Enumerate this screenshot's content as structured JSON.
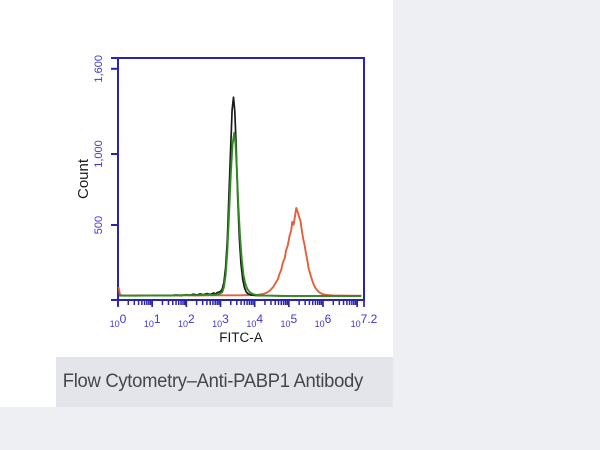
{
  "page": {
    "background_color": "#ffffff",
    "margin_color": "#edeff3"
  },
  "figure": {
    "background_color": "#ffffff"
  },
  "caption": {
    "text": "Flow Cytometry–Anti-PABP1 Antibody",
    "background_color": "#e4e5ea",
    "text_color": "#46464a"
  },
  "chart_data": {
    "type": "line",
    "subtype": "flow-cytometry-histogram",
    "title": "",
    "xlabel": "FITC-A",
    "ylabel": "Count",
    "x_scale": "log10",
    "x_range_exponents": [
      0,
      7.2
    ],
    "x_tick_labels": [
      {
        "base": "10",
        "exp": "0",
        "pos": 0
      },
      {
        "base": "10",
        "exp": "1",
        "pos": 1
      },
      {
        "base": "10",
        "exp": "2",
        "pos": 2
      },
      {
        "base": "10",
        "exp": "3",
        "pos": 3
      },
      {
        "base": "10",
        "exp": "4",
        "pos": 4
      },
      {
        "base": "10",
        "exp": "5",
        "pos": 5
      },
      {
        "base": "10",
        "exp": "6",
        "pos": 6
      },
      {
        "base": "10",
        "exp": "7.2",
        "pos": 7.2
      }
    ],
    "y_ticks": [
      {
        "value": 500,
        "label": "500"
      },
      {
        "value": 1000,
        "label": "1,000"
      },
      {
        "value": 1600,
        "label": "1,600"
      }
    ],
    "ylim": [
      0,
      1676
    ],
    "grid": false,
    "legend": "none",
    "axis_color": "#2b22ae",
    "tick_label_color": "#4238c8",
    "axis_title_color": "#1a1a1a",
    "series": [
      {
        "name": "orange",
        "color": "#e2603c",
        "stroke_width": 1.9,
        "peak": {
          "log_x": 5.22,
          "count": 620
        },
        "points": [
          [
            0.02,
            58
          ],
          [
            0.06,
            8
          ],
          [
            0.12,
            4
          ],
          [
            0.4,
            3
          ],
          [
            0.8,
            4
          ],
          [
            1.2,
            3
          ],
          [
            1.6,
            4
          ],
          [
            2.0,
            5
          ],
          [
            2.4,
            4
          ],
          [
            2.8,
            5
          ],
          [
            3.2,
            5
          ],
          [
            3.6,
            5
          ],
          [
            3.9,
            7
          ],
          [
            4.1,
            9
          ],
          [
            4.25,
            14
          ],
          [
            4.35,
            23
          ],
          [
            4.45,
            39
          ],
          [
            4.55,
            66
          ],
          [
            4.62,
            96
          ],
          [
            4.68,
            118
          ],
          [
            4.72,
            152
          ],
          [
            4.78,
            186
          ],
          [
            4.82,
            232
          ],
          [
            4.88,
            266
          ],
          [
            4.92,
            322
          ],
          [
            4.97,
            356
          ],
          [
            5.02,
            422
          ],
          [
            5.07,
            462
          ],
          [
            5.1,
            521
          ],
          [
            5.14,
            502
          ],
          [
            5.18,
            562
          ],
          [
            5.22,
            620
          ],
          [
            5.26,
            592
          ],
          [
            5.3,
            556
          ],
          [
            5.34,
            532
          ],
          [
            5.38,
            462
          ],
          [
            5.42,
            402
          ],
          [
            5.46,
            362
          ],
          [
            5.5,
            302
          ],
          [
            5.54,
            252
          ],
          [
            5.58,
            196
          ],
          [
            5.63,
            151
          ],
          [
            5.68,
            112
          ],
          [
            5.73,
            79
          ],
          [
            5.78,
            56
          ],
          [
            5.84,
            38
          ],
          [
            5.9,
            24
          ],
          [
            5.98,
            14
          ],
          [
            6.06,
            9
          ],
          [
            6.15,
            6
          ],
          [
            6.3,
            4
          ],
          [
            6.5,
            3
          ],
          [
            6.8,
            2
          ],
          [
            7.1,
            2
          ]
        ]
      },
      {
        "name": "black",
        "color": "#1b1b1b",
        "stroke_width": 1.7,
        "peak": {
          "log_x": 3.38,
          "count": 1400
        },
        "points": [
          [
            0.05,
            3
          ],
          [
            0.3,
            2
          ],
          [
            0.6,
            3
          ],
          [
            0.9,
            2
          ],
          [
            1.2,
            4
          ],
          [
            1.5,
            3
          ],
          [
            1.7,
            7
          ],
          [
            1.85,
            3
          ],
          [
            2.0,
            9
          ],
          [
            2.1,
            5
          ],
          [
            2.2,
            13
          ],
          [
            2.3,
            7
          ],
          [
            2.4,
            15
          ],
          [
            2.5,
            9
          ],
          [
            2.6,
            17
          ],
          [
            2.7,
            11
          ],
          [
            2.8,
            21
          ],
          [
            2.85,
            14
          ],
          [
            2.9,
            23
          ],
          [
            3.0,
            32
          ],
          [
            3.05,
            48
          ],
          [
            3.1,
            95
          ],
          [
            3.15,
            200
          ],
          [
            3.2,
            390
          ],
          [
            3.25,
            720
          ],
          [
            3.3,
            1070
          ],
          [
            3.34,
            1310
          ],
          [
            3.38,
            1400
          ],
          [
            3.42,
            1300
          ],
          [
            3.46,
            1050
          ],
          [
            3.5,
            710
          ],
          [
            3.55,
            415
          ],
          [
            3.6,
            225
          ],
          [
            3.65,
            118
          ],
          [
            3.7,
            60
          ],
          [
            3.75,
            30
          ],
          [
            3.8,
            16
          ],
          [
            3.9,
            7
          ],
          [
            4.0,
            4
          ],
          [
            4.15,
            2
          ],
          [
            4.4,
            2
          ],
          [
            4.8,
            1
          ],
          [
            5.5,
            1
          ],
          [
            6.2,
            1
          ],
          [
            7.1,
            1
          ]
        ]
      },
      {
        "name": "green",
        "color": "#2f8b21",
        "stroke_width": 1.9,
        "peak": {
          "log_x": 3.4,
          "count": 1150
        },
        "points": [
          [
            0.05,
            2
          ],
          [
            0.5,
            2
          ],
          [
            1.0,
            3
          ],
          [
            1.5,
            3
          ],
          [
            2.0,
            6
          ],
          [
            2.3,
            5
          ],
          [
            2.6,
            9
          ],
          [
            2.8,
            8
          ],
          [
            2.95,
            13
          ],
          [
            3.05,
            26
          ],
          [
            3.1,
            62
          ],
          [
            3.15,
            145
          ],
          [
            3.2,
            310
          ],
          [
            3.25,
            570
          ],
          [
            3.3,
            860
          ],
          [
            3.35,
            1065
          ],
          [
            3.4,
            1150
          ],
          [
            3.44,
            1075
          ],
          [
            3.48,
            880
          ],
          [
            3.52,
            645
          ],
          [
            3.57,
            425
          ],
          [
            3.62,
            262
          ],
          [
            3.67,
            152
          ],
          [
            3.72,
            92
          ],
          [
            3.78,
            52
          ],
          [
            3.85,
            28
          ],
          [
            3.95,
            13
          ],
          [
            4.05,
            7
          ],
          [
            4.2,
            3
          ],
          [
            4.5,
            2
          ],
          [
            5.0,
            1
          ],
          [
            6.0,
            1
          ],
          [
            7.1,
            1
          ]
        ]
      }
    ]
  }
}
